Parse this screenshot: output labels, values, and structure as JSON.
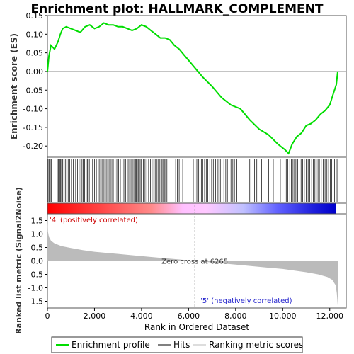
{
  "chart_data": {
    "type": "line",
    "title": "Enrichment plot: HALLMARK_COMPLEMENT",
    "es_panel": {
      "ylabel": "Enrichment score (ES)",
      "ylim": [
        -0.23,
        0.15
      ],
      "yticks": [
        "0.15",
        "0.10",
        "0.05",
        "0.00",
        "-0.05",
        "-0.10",
        "-0.15",
        "-0.20"
      ],
      "ytick_values": [
        0.15,
        0.1,
        0.05,
        0.0,
        -0.05,
        -0.1,
        -0.15,
        -0.2
      ],
      "series": [
        {
          "name": "Enrichment profile",
          "color": "#00dd00",
          "x": [
            0,
            60,
            150,
            300,
            450,
            550,
            650,
            800,
            1000,
            1200,
            1400,
            1600,
            1800,
            2000,
            2200,
            2400,
            2600,
            2800,
            3000,
            3200,
            3400,
            3600,
            3800,
            4000,
            4200,
            4400,
            4600,
            4800,
            5000,
            5200,
            5400,
            5600,
            5800,
            6000,
            6265,
            6600,
            7000,
            7400,
            7800,
            8200,
            8600,
            9000,
            9400,
            9800,
            10100,
            10250,
            10400,
            10600,
            10800,
            11000,
            11200,
            11400,
            11600,
            11800,
            12000,
            12150,
            12280,
            12340
          ],
          "values": [
            0.0,
            0.04,
            0.07,
            0.06,
            0.08,
            0.1,
            0.115,
            0.12,
            0.115,
            0.11,
            0.105,
            0.12,
            0.125,
            0.115,
            0.12,
            0.13,
            0.125,
            0.125,
            0.12,
            0.12,
            0.115,
            0.11,
            0.115,
            0.125,
            0.12,
            0.11,
            0.1,
            0.09,
            0.09,
            0.085,
            0.07,
            0.06,
            0.045,
            0.03,
            0.01,
            -0.015,
            -0.04,
            -0.07,
            -0.09,
            -0.1,
            -0.13,
            -0.155,
            -0.17,
            -0.195,
            -0.21,
            -0.22,
            -0.195,
            -0.175,
            -0.165,
            -0.145,
            -0.14,
            -0.13,
            -0.115,
            -0.105,
            -0.09,
            -0.06,
            -0.035,
            0.0
          ]
        }
      ]
    },
    "hits": [
      30,
      70,
      120,
      160,
      420,
      470,
      520,
      560,
      600,
      650,
      700,
      760,
      820,
      880,
      950,
      1020,
      1100,
      1200,
      1280,
      1350,
      1420,
      1470,
      1520,
      1580,
      1650,
      1700,
      1780,
      1850,
      1920,
      2000,
      2080,
      2150,
      2200,
      2260,
      2320,
      2380,
      2440,
      2500,
      2560,
      2620,
      2680,
      2740,
      2800,
      2880,
      2950,
      3020,
      3100,
      3180,
      3250,
      3320,
      3400,
      3460,
      3520,
      3580,
      3640,
      3700,
      3740,
      3780,
      3820,
      3860,
      3900,
      3940,
      3980,
      4020,
      4080,
      4150,
      4220,
      4300,
      4380,
      4450,
      4520,
      4580,
      4640,
      4700,
      4760,
      4820,
      4870,
      4910,
      4950,
      4990,
      5030,
      5080,
      5450,
      5520,
      5600,
      5750,
      6200,
      6280,
      6350,
      6420,
      6480,
      6540,
      6600,
      6680,
      6750,
      6820,
      6900,
      6980,
      7050,
      7150,
      7250,
      7350,
      7420,
      7500,
      7580,
      7650,
      7720,
      7800,
      7880,
      7950,
      8050,
      8600,
      8800,
      8900,
      9100,
      9400,
      9600,
      9900,
      10150,
      10220,
      10300,
      10370,
      10440,
      10500,
      10560,
      10640,
      10700,
      10780,
      10850,
      10920,
      11000,
      11080,
      11150,
      11230,
      11300,
      11370,
      11430,
      11500,
      11560,
      11640,
      11720,
      11800,
      11880,
      11950,
      12020,
      12080,
      12140,
      12200,
      12260,
      12310
    ],
    "rank_panel": {
      "ylabel": "Ranked list metric (Signal2Noise)",
      "ylim": [
        -1.75,
        1.75
      ],
      "yticks": [
        "1.5",
        "1.0",
        "0.5",
        "0.0",
        "-0.5",
        "-1.0",
        "-1.5"
      ],
      "ytick_values": [
        1.5,
        1.0,
        0.5,
        0.0,
        -0.5,
        -1.0,
        -1.5
      ],
      "profile_x": [
        0,
        20,
        60,
        150,
        300,
        600,
        1000,
        1500,
        2000,
        3000,
        4000,
        5000,
        6265,
        7000,
        8000,
        9000,
        10000,
        11000,
        11500,
        11900,
        12100,
        12250,
        12300,
        12340
      ],
      "profile_y": [
        1.75,
        1.1,
        0.9,
        0.75,
        0.65,
        0.55,
        0.48,
        0.4,
        0.34,
        0.26,
        0.18,
        0.1,
        0.0,
        -0.06,
        -0.14,
        -0.22,
        -0.3,
        -0.42,
        -0.5,
        -0.6,
        -0.7,
        -0.9,
        -1.2,
        -1.65
      ],
      "positive_label": "'4' (positively correlated)",
      "negative_label": "'5' (negatively correlated)",
      "zero_cross_label": "Zero cross at 6265",
      "zero_cross": 6265
    },
    "xaxis": {
      "label": "Rank in Ordered Dataset",
      "xlim": [
        0,
        12700
      ],
      "xticks": [
        "0",
        "2,000",
        "4,000",
        "6,000",
        "8,000",
        "10,000",
        "12,000"
      ],
      "xtick_values": [
        0,
        2000,
        4000,
        6000,
        8000,
        10000,
        12000
      ]
    },
    "legend": {
      "placement": "bottom",
      "entries": [
        {
          "label": "Enrichment profile",
          "color": "#00dd00"
        },
        {
          "label": "Hits",
          "color": "#000000"
        },
        {
          "label": "Ranking metric scores",
          "color": "#bbbbbb"
        }
      ]
    },
    "colors": {
      "positive": "#ff0000",
      "negative": "#0000cc",
      "neutral": "#ffc0ff",
      "metric_fill": "#bbbbbb",
      "zero_cross_line": "#999999"
    }
  }
}
